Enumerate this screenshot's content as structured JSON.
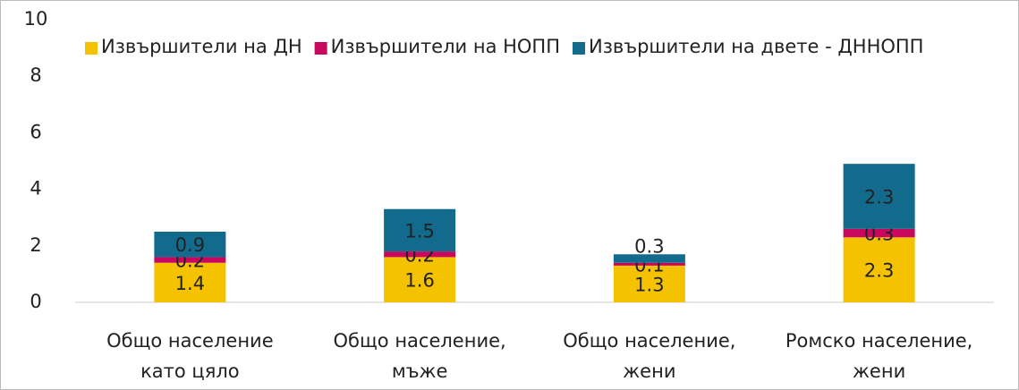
{
  "chart_data": {
    "type": "stacked_bar",
    "categories": [
      [
        "Общо население",
        "като цяло"
      ],
      [
        "Общо население,",
        "мъже"
      ],
      [
        "Общо население,",
        "жени"
      ],
      [
        "Ромско население,",
        "жени"
      ]
    ],
    "series": [
      {
        "name": "Извършители на ДН",
        "color": "#f5c200",
        "values": [
          1.4,
          1.6,
          1.3,
          2.3
        ]
      },
      {
        "name": "Извършители на НОПП",
        "color": "#c8075f",
        "values": [
          0.2,
          0.2,
          0.1,
          0.3
        ]
      },
      {
        "name": "Извършители на двете - ДННОПП",
        "color": "#126b8c",
        "values": [
          0.9,
          1.5,
          0.3,
          2.3
        ]
      }
    ],
    "ylim": [
      0,
      10
    ],
    "yticks": [
      0,
      2,
      4,
      6,
      8,
      10
    ],
    "legend": "top"
  }
}
